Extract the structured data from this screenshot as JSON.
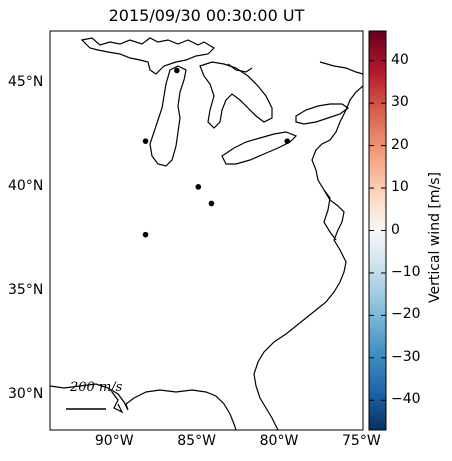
{
  "title": "2015/09/30 00:30:00 UT",
  "map": {
    "lon_range": [
      -94,
      -75
    ],
    "lat_range": [
      28.3,
      47.5
    ],
    "x_ticks": [
      {
        "value": -90,
        "label": "90°W"
      },
      {
        "value": -85,
        "label": "85°W"
      },
      {
        "value": -80,
        "label": "80°W"
      },
      {
        "value": -75,
        "label": "75°W"
      }
    ],
    "y_ticks": [
      {
        "value": 45,
        "label": "45°N"
      },
      {
        "value": 40,
        "label": "40°N"
      },
      {
        "value": 35,
        "label": "35°N"
      },
      {
        "value": 30,
        "label": "30°N"
      }
    ],
    "stations": [
      {
        "lon": -88.2,
        "lat": 42.2
      },
      {
        "lon": -85.0,
        "lat": 40.0
      },
      {
        "lon": -84.2,
        "lat": 39.2
      },
      {
        "lon": -88.2,
        "lat": 37.7
      },
      {
        "lon": -79.6,
        "lat": 42.2
      },
      {
        "lon": -86.3,
        "lat": 45.6
      }
    ],
    "scale_label": "200 m/s"
  },
  "colorbar": {
    "label": "Vertical wind [m/s]",
    "range": [
      -47,
      47
    ],
    "ticks": [
      40,
      30,
      20,
      10,
      0,
      -10,
      -20,
      -30,
      -40
    ],
    "tick_labels": [
      "40",
      "30",
      "20",
      "10",
      "0",
      "−10",
      "−20",
      "−30",
      "−40"
    ],
    "colormap": [
      "#67001f",
      "#b2182b",
      "#d6604d",
      "#f4a582",
      "#fddbc7",
      "#f7f7f7",
      "#d1e5f0",
      "#92c5de",
      "#4393c3",
      "#2166ac",
      "#053061"
    ]
  }
}
